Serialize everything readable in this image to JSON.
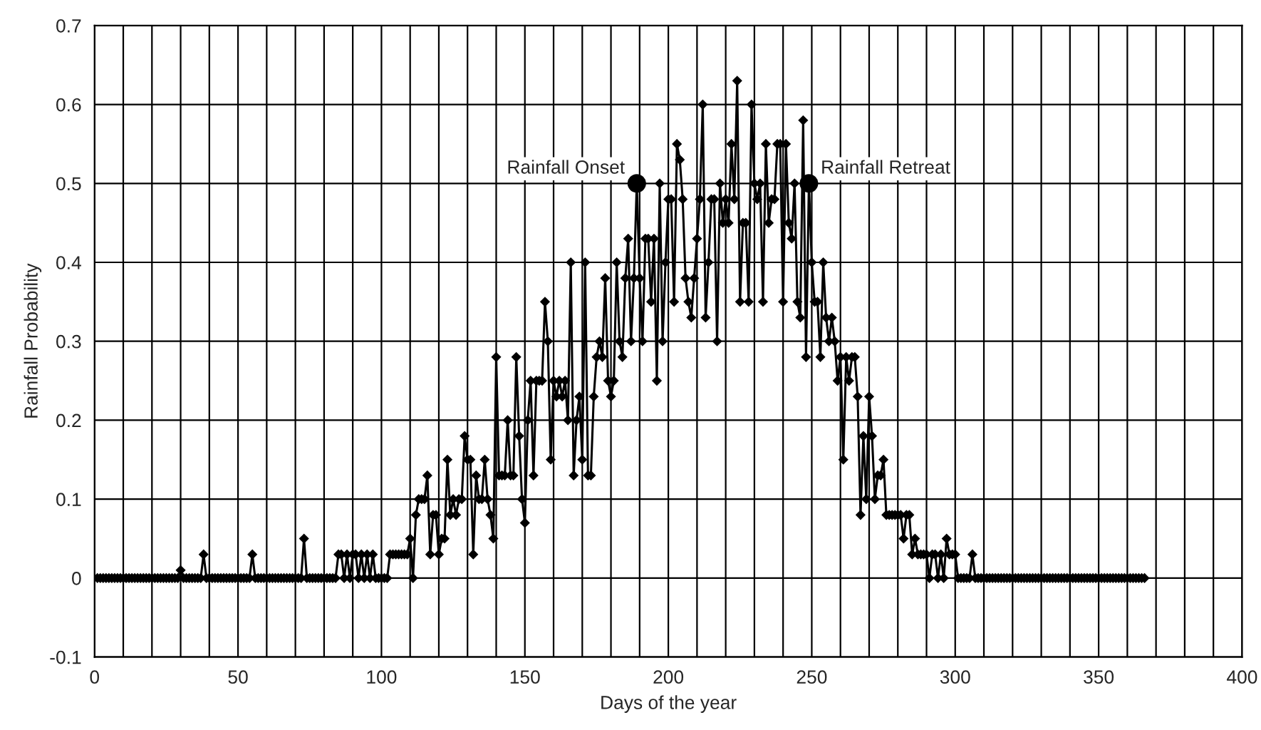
{
  "chart_data": {
    "type": "line",
    "xlabel": "Days of the year",
    "ylabel": "Rainfall Probability",
    "xlim": [
      0,
      400
    ],
    "ylim": [
      -0.1,
      0.7
    ],
    "xticks": [
      0,
      {
        "value": 10,
        "label": null
      },
      {
        "value": 20,
        "label": null
      },
      {
        "value": 30,
        "label": null
      },
      {
        "value": 40,
        "label": null
      },
      50,
      {
        "value": 60,
        "label": null
      },
      {
        "value": 70,
        "label": null
      },
      {
        "value": 80,
        "label": null
      },
      {
        "value": 90,
        "label": null
      },
      100,
      {
        "value": 110,
        "label": null
      },
      {
        "value": 120,
        "label": null
      },
      {
        "value": 130,
        "label": null
      },
      {
        "value": 140,
        "label": null
      },
      150,
      {
        "value": 160,
        "label": null
      },
      {
        "value": 170,
        "label": null
      },
      {
        "value": 180,
        "label": null
      },
      {
        "value": 190,
        "label": null
      },
      200,
      {
        "value": 210,
        "label": null
      },
      {
        "value": 220,
        "label": null
      },
      {
        "value": 230,
        "label": null
      },
      {
        "value": 240,
        "label": null
      },
      250,
      {
        "value": 260,
        "label": null
      },
      {
        "value": 270,
        "label": null
      },
      {
        "value": 280,
        "label": null
      },
      {
        "value": 290,
        "label": null
      },
      300,
      {
        "value": 310,
        "label": null
      },
      {
        "value": 320,
        "label": null
      },
      {
        "value": 330,
        "label": null
      },
      {
        "value": 340,
        "label": null
      },
      350,
      {
        "value": 360,
        "label": null
      },
      {
        "value": 370,
        "label": null
      },
      {
        "value": 380,
        "label": null
      },
      {
        "value": 390,
        "label": null
      },
      400
    ],
    "yticks": [
      -0.1,
      0,
      0.1,
      0.2,
      0.3,
      0.4,
      0.5,
      0.6,
      0.7
    ],
    "grid": true,
    "legend": false,
    "marker": "diamond",
    "line_style": "solid",
    "series": [
      {
        "color": "#000000",
        "x": [
          1,
          2,
          3,
          4,
          5,
          6,
          7,
          8,
          9,
          10,
          11,
          12,
          13,
          14,
          15,
          16,
          17,
          18,
          19,
          20,
          21,
          22,
          23,
          24,
          25,
          26,
          27,
          28,
          29,
          30,
          31,
          32,
          33,
          34,
          35,
          36,
          37,
          38,
          39,
          40,
          41,
          42,
          43,
          44,
          45,
          46,
          47,
          48,
          49,
          50,
          51,
          52,
          53,
          54,
          55,
          56,
          57,
          58,
          59,
          60,
          61,
          62,
          63,
          64,
          65,
          66,
          67,
          68,
          69,
          70,
          71,
          72,
          73,
          74,
          75,
          76,
          77,
          78,
          79,
          80,
          81,
          82,
          83,
          84,
          85,
          86,
          87,
          88,
          89,
          90,
          91,
          92,
          93,
          94,
          95,
          96,
          97,
          98,
          99,
          100,
          101,
          102,
          103,
          104,
          105,
          106,
          107,
          108,
          109,
          110,
          111,
          112,
          113,
          114,
          115,
          116,
          117,
          118,
          119,
          120,
          121,
          122,
          123,
          124,
          125,
          126,
          127,
          128,
          129,
          130,
          131,
          132,
          133,
          134,
          135,
          136,
          137,
          138,
          139,
          140,
          141,
          142,
          143,
          144,
          145,
          146,
          147,
          148,
          149,
          150,
          151,
          152,
          153,
          154,
          155,
          156,
          157,
          158,
          159,
          160,
          161,
          162,
          163,
          164,
          165,
          166,
          167,
          168,
          169,
          170,
          171,
          172,
          173,
          174,
          175,
          176,
          177,
          178,
          179,
          180,
          181,
          182,
          183,
          184,
          185,
          186,
          187,
          188,
          189,
          190,
          191,
          192,
          193,
          194,
          195,
          196,
          197,
          198,
          199,
          200,
          201,
          202,
          203,
          204,
          205,
          206,
          207,
          208,
          209,
          210,
          211,
          212,
          213,
          214,
          215,
          216,
          217,
          218,
          219,
          220,
          221,
          222,
          223,
          224,
          225,
          226,
          227,
          228,
          229,
          230,
          231,
          232,
          233,
          234,
          235,
          236,
          237,
          238,
          239,
          240,
          241,
          242,
          243,
          244,
          245,
          246,
          247,
          248,
          249,
          250,
          251,
          252,
          253,
          254,
          255,
          256,
          257,
          258,
          259,
          260,
          261,
          262,
          263,
          264,
          265,
          266,
          267,
          268,
          269,
          270,
          271,
          272,
          273,
          274,
          275,
          276,
          277,
          278,
          279,
          280,
          281,
          282,
          283,
          284,
          285,
          286,
          287,
          288,
          289,
          290,
          291,
          292,
          293,
          294,
          295,
          296,
          297,
          298,
          299,
          300,
          301,
          302,
          303,
          304,
          305,
          306,
          307,
          308,
          309,
          310,
          311,
          312,
          313,
          314,
          315,
          316,
          317,
          318,
          319,
          320,
          321,
          322,
          323,
          324,
          325,
          326,
          327,
          328,
          329,
          330,
          331,
          332,
          333,
          334,
          335,
          336,
          337,
          338,
          339,
          340,
          341,
          342,
          343,
          344,
          345,
          346,
          347,
          348,
          349,
          350,
          351,
          352,
          353,
          354,
          355,
          356,
          357,
          358,
          359,
          360,
          361,
          362,
          363,
          364,
          365,
          366
        ],
        "values": [
          0,
          0,
          0,
          0,
          0,
          0,
          0,
          0,
          0,
          0,
          0,
          0,
          0,
          0,
          0,
          0,
          0,
          0,
          0,
          0,
          0,
          0,
          0,
          0,
          0,
          0,
          0,
          0,
          0,
          0.01,
          0,
          0,
          0,
          0,
          0,
          0,
          0,
          0.03,
          0,
          0,
          0,
          0,
          0,
          0,
          0,
          0,
          0,
          0,
          0,
          0,
          0,
          0,
          0,
          0,
          0.03,
          0,
          0,
          0,
          0,
          0,
          0,
          0,
          0,
          0,
          0,
          0,
          0,
          0,
          0,
          0,
          0,
          0,
          0.05,
          0,
          0,
          0,
          0,
          0,
          0,
          0,
          0,
          0,
          0,
          0,
          0.03,
          0.03,
          0,
          0.03,
          0,
          0.03,
          0.03,
          0,
          0.03,
          0,
          0.03,
          0,
          0.03,
          0,
          0,
          0,
          0,
          0,
          0.03,
          0.03,
          0.03,
          0.03,
          0.03,
          0.03,
          0.03,
          0.05,
          0,
          0.08,
          0.1,
          0.1,
          0.1,
          0.13,
          0.03,
          0.08,
          0.08,
          0.03,
          0.05,
          0.05,
          0.15,
          0.08,
          0.1,
          0.08,
          0.1,
          0.1,
          0.18,
          0.15,
          0.15,
          0.03,
          0.13,
          0.1,
          0.1,
          0.15,
          0.1,
          0.08,
          0.05,
          0.28,
          0.13,
          0.13,
          0.13,
          0.2,
          0.13,
          0.13,
          0.28,
          0.18,
          0.1,
          0.07,
          0.2,
          0.25,
          0.13,
          0.25,
          0.25,
          0.25,
          0.35,
          0.3,
          0.15,
          0.25,
          0.23,
          0.25,
          0.23,
          0.25,
          0.2,
          0.4,
          0.13,
          0.2,
          0.23,
          0.15,
          0.4,
          0.13,
          0.13,
          0.23,
          0.28,
          0.3,
          0.28,
          0.38,
          0.25,
          0.23,
          0.25,
          0.4,
          0.3,
          0.28,
          0.38,
          0.43,
          0.3,
          0.38,
          0.5,
          0.38,
          0.3,
          0.43,
          0.43,
          0.35,
          0.43,
          0.25,
          0.5,
          0.3,
          0.4,
          0.48,
          0.48,
          0.35,
          0.55,
          0.53,
          0.48,
          0.38,
          0.35,
          0.33,
          0.38,
          0.43,
          0.48,
          0.6,
          0.33,
          0.4,
          0.48,
          0.48,
          0.3,
          0.5,
          0.45,
          0.48,
          0.45,
          0.55,
          0.48,
          0.63,
          0.35,
          0.45,
          0.45,
          0.35,
          0.6,
          0.5,
          0.48,
          0.5,
          0.35,
          0.55,
          0.45,
          0.48,
          0.48,
          0.55,
          0.55,
          0.35,
          0.55,
          0.45,
          0.43,
          0.5,
          0.35,
          0.33,
          0.58,
          0.28,
          0.5,
          0.4,
          0.35,
          0.35,
          0.28,
          0.4,
          0.33,
          0.3,
          0.33,
          0.3,
          0.25,
          0.28,
          0.15,
          0.28,
          0.25,
          0.28,
          0.28,
          0.23,
          0.08,
          0.18,
          0.1,
          0.23,
          0.18,
          0.1,
          0.13,
          0.13,
          0.15,
          0.08,
          0.08,
          0.08,
          0.08,
          0.08,
          0.08,
          0.05,
          0.08,
          0.08,
          0.03,
          0.05,
          0.03,
          0.03,
          0.03,
          0.03,
          0,
          0.03,
          0.03,
          0,
          0.03,
          0,
          0.05,
          0.03,
          0.03,
          0.03,
          0,
          0,
          0,
          0,
          0,
          0.03,
          0,
          0,
          0,
          0,
          0,
          0,
          0,
          0,
          0,
          0,
          0,
          0,
          0,
          0,
          0,
          0,
          0,
          0,
          0,
          0,
          0,
          0,
          0,
          0,
          0,
          0,
          0,
          0,
          0,
          0,
          0,
          0,
          0,
          0,
          0,
          0,
          0,
          0,
          0,
          0,
          0,
          0,
          0,
          0,
          0,
          0,
          0,
          0,
          0,
          0,
          0,
          0,
          0,
          0,
          0,
          0,
          0,
          0,
          0,
          0
        ]
      },
      {
        "type": "scatter",
        "color": "#000000",
        "marker": "circle",
        "x": [
          189,
          249
        ],
        "values": [
          0.5,
          0.5
        ]
      }
    ],
    "annotations": [
      {
        "text": "Rainfall Onset",
        "x": 189,
        "y": 0.5
      },
      {
        "text": "Rainfall Retreat",
        "x": 249,
        "y": 0.5
      }
    ]
  }
}
